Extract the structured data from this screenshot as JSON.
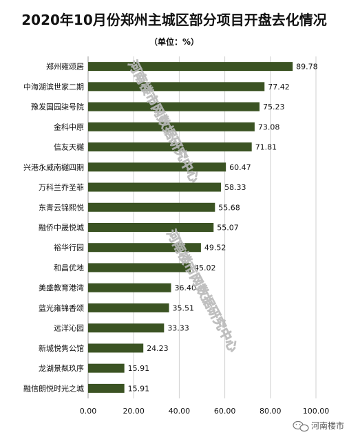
{
  "chart_data": {
    "type": "bar",
    "orientation": "horizontal",
    "title": "2020年10月份郑州主城区部分项目开盘去化情况",
    "subtitle": "（单位：%）",
    "categories": [
      "郑州雍颂居",
      "中海湖滨世家二期",
      "豫发国园柒号院",
      "金科中原",
      "信友天樾",
      "兴港永威南樾四期",
      "万科兰乔圣菲",
      "东青云锦熙悦",
      "融侨中晟悦城",
      "裕华行园",
      "和昌优地",
      "美盛教育港湾",
      "蓝光雍锦香颂",
      "远洋沁园",
      "新城悦隽公馆",
      "龙湖景粼玖序",
      "融信朗悦时光之城"
    ],
    "values": [
      89.78,
      77.42,
      75.23,
      73.08,
      71.81,
      60.47,
      58.33,
      55.68,
      55.07,
      49.52,
      45.02,
      36.4,
      35.51,
      33.33,
      24.23,
      15.91,
      15.91
    ],
    "value_labels": [
      "89.78",
      "77.42",
      "75.23",
      "73.08",
      "71.81",
      "60.47",
      "58.33",
      "55.68",
      "55.07",
      "49.52",
      "45.02",
      "36.40",
      "35.51",
      "33.33",
      "24.23",
      "15.91",
      "15.91"
    ],
    "xlim": [
      0,
      100
    ],
    "xticks": [
      "0.00",
      "20.00",
      "40.00",
      "60.00",
      "80.00",
      "100.00"
    ],
    "grid": "vertical",
    "bar_color": "#3b5323",
    "legend": "none"
  },
  "watermark": {
    "text": "河南楼市网数据研究中心"
  },
  "brand": {
    "name": "河南楼市",
    "icon": "wechat-icon"
  }
}
